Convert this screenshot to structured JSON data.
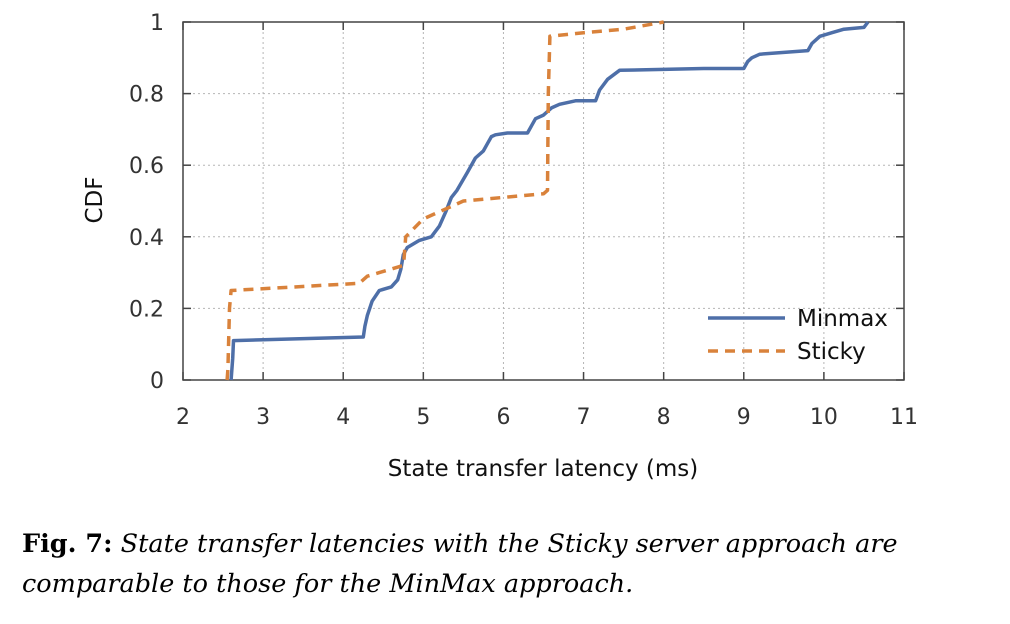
{
  "chart_data": {
    "type": "line",
    "xlabel": "State transfer latency (ms)",
    "ylabel": "CDF",
    "xlim": [
      2,
      11
    ],
    "ylim": [
      0,
      1
    ],
    "x_ticks": [
      "2",
      "3",
      "4",
      "5",
      "6",
      "7",
      "8",
      "9",
      "10",
      "11"
    ],
    "y_ticks": [
      "0",
      "0.2",
      "0.4",
      "0.6",
      "0.8",
      "1"
    ],
    "grid": true,
    "legend_position": "bottom-right",
    "series": [
      {
        "name": "Minmax",
        "color": "#4e6fa8",
        "style": "solid",
        "x": [
          2.6,
          2.62,
          2.63,
          4.25,
          4.27,
          4.3,
          4.33,
          4.36,
          4.45,
          4.6,
          4.68,
          4.72,
          4.75,
          4.8,
          4.95,
          5.1,
          5.2,
          5.28,
          5.35,
          5.42,
          5.55,
          5.65,
          5.75,
          5.8,
          5.85,
          5.9,
          6.05,
          6.3,
          6.35,
          6.4,
          6.5,
          6.55,
          6.6,
          6.7,
          6.9,
          7.15,
          7.2,
          7.3,
          7.45,
          8.5,
          9.0,
          9.05,
          9.1,
          9.2,
          9.8,
          9.85,
          9.95,
          10.1,
          10.25,
          10.5,
          10.55
        ],
        "y": [
          0,
          0.06,
          0.11,
          0.12,
          0.15,
          0.18,
          0.2,
          0.22,
          0.25,
          0.26,
          0.28,
          0.31,
          0.35,
          0.37,
          0.39,
          0.4,
          0.43,
          0.47,
          0.51,
          0.53,
          0.58,
          0.62,
          0.64,
          0.66,
          0.68,
          0.685,
          0.69,
          0.69,
          0.71,
          0.73,
          0.74,
          0.75,
          0.76,
          0.77,
          0.78,
          0.78,
          0.81,
          0.84,
          0.865,
          0.87,
          0.87,
          0.89,
          0.9,
          0.91,
          0.92,
          0.94,
          0.96,
          0.97,
          0.98,
          0.985,
          1.0
        ]
      },
      {
        "name": "Sticky",
        "color": "#d9823b",
        "style": "dashed",
        "x": [
          2.55,
          2.56,
          2.58,
          2.6,
          4.2,
          4.3,
          4.45,
          4.6,
          4.75,
          4.76,
          4.78,
          5.0,
          5.3,
          5.5,
          6.0,
          6.5,
          6.55,
          6.56,
          6.58,
          7.0,
          7.5,
          8.0
        ],
        "y": [
          0,
          0.03,
          0.2,
          0.25,
          0.27,
          0.29,
          0.3,
          0.31,
          0.32,
          0.34,
          0.4,
          0.45,
          0.48,
          0.5,
          0.51,
          0.52,
          0.53,
          0.8,
          0.96,
          0.97,
          0.98,
          1.0
        ]
      }
    ]
  },
  "caption": {
    "label": "Fig. 7:",
    "text": "State transfer latencies with the Sticky server approach are comparable to those for the MinMax approach."
  }
}
